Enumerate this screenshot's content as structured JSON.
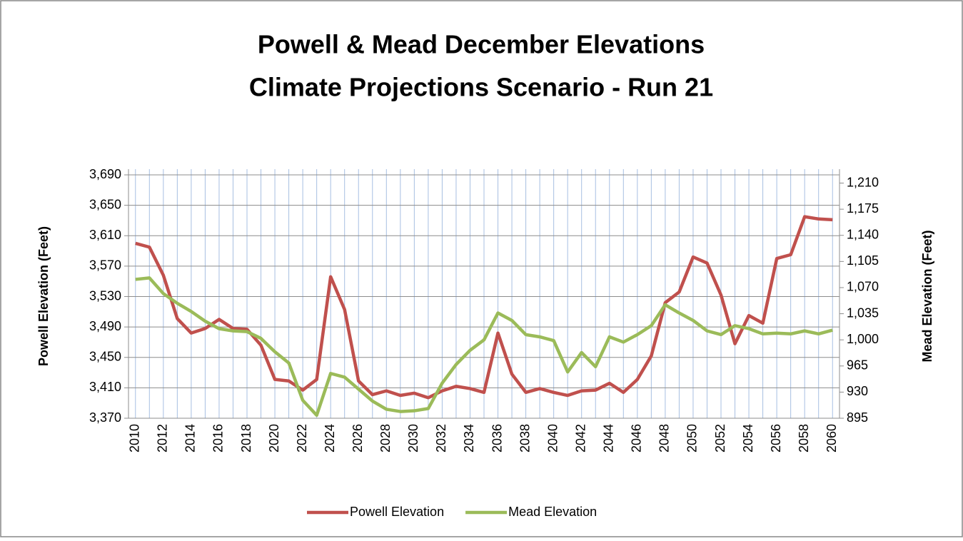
{
  "chart_data": {
    "type": "line",
    "title": "Powell & Mead December Elevations",
    "subtitle": "Climate Projections Scenario - Run 21",
    "y_label": "Powell Elevation (Feet)",
    "y2_label": "Mead Elevation (Feet)",
    "categories": [
      "2010",
      null,
      "2012",
      null,
      "2014",
      null,
      "2016",
      null,
      "2018",
      null,
      "2020",
      null,
      "2022",
      null,
      "2024",
      null,
      "2026",
      null,
      "2028",
      null,
      "2030",
      null,
      "2032",
      null,
      "2034",
      null,
      "2036",
      null,
      "2038",
      null,
      "2040",
      null,
      "2042",
      null,
      "2044",
      null,
      "2046",
      null,
      "2048",
      null,
      "2050",
      null,
      "2052",
      null,
      "2054",
      null,
      "2056",
      null,
      "2058",
      null,
      "2060"
    ],
    "series": [
      {
        "name": "Powell Elevation",
        "color": "#c0504d",
        "values": [
          3600,
          3595,
          3558,
          3501,
          3482,
          3488,
          3500,
          3488,
          3487,
          3466,
          3421,
          3419,
          3407,
          3421,
          3556,
          3513,
          3419,
          3401,
          3406,
          3400,
          3403,
          3397,
          3406,
          3412,
          3409,
          3404,
          3482,
          3428,
          3404,
          3409,
          3404,
          3400,
          3406,
          3407,
          3416,
          3404,
          3421,
          3452,
          3522,
          3536,
          3582,
          3574,
          3532,
          3468,
          3505,
          3495,
          3580,
          3585,
          3635,
          3632,
          3631
        ]
      },
      {
        "name": "Mead Elevation",
        "color": "#9bbb59",
        "axis": "y2",
        "values": [
          1081,
          1083,
          1062,
          1049,
          1038,
          1025,
          1015,
          1012,
          1011,
          1002,
          984,
          969,
          919,
          899,
          955,
          950,
          934,
          918,
          907,
          904,
          905,
          908,
          942,
          967,
          986,
          1000,
          1036,
          1026,
          1007,
          1004,
          999,
          957,
          983,
          964,
          1004,
          997,
          1007,
          1019,
          1047,
          1036,
          1026,
          1012,
          1007,
          1019,
          1015,
          1008,
          1009,
          1008,
          1012,
          1008,
          1013
        ]
      }
    ],
    "ylim": [
      3370,
      3690
    ],
    "yticks": [
      {
        "value": 3370,
        "label": "3,370"
      },
      {
        "value": 3410,
        "label": "3,410"
      },
      {
        "value": 3450,
        "label": "3,450"
      },
      {
        "value": 3490,
        "label": "3,490"
      },
      {
        "value": 3530,
        "label": "3,530"
      },
      {
        "value": 3570,
        "label": "3,570"
      },
      {
        "value": 3610,
        "label": "3,610"
      },
      {
        "value": 3650,
        "label": "3,650"
      },
      {
        "value": 3690,
        "label": "3,690"
      }
    ],
    "y2lim": [
      895,
      1221
    ],
    "y2ticks": [
      895,
      930,
      965,
      {
        "value": 1000,
        "label": "1,000"
      },
      {
        "value": 1035,
        "label": "1,035"
      },
      {
        "value": 1070,
        "label": "1,070"
      },
      {
        "value": 1105,
        "label": "1,105"
      },
      {
        "value": 1140,
        "label": "1,140"
      },
      {
        "value": 1175,
        "label": "1,175"
      },
      {
        "value": 1210,
        "label": "1,210"
      }
    ],
    "grid": true,
    "legend": "bottom"
  }
}
